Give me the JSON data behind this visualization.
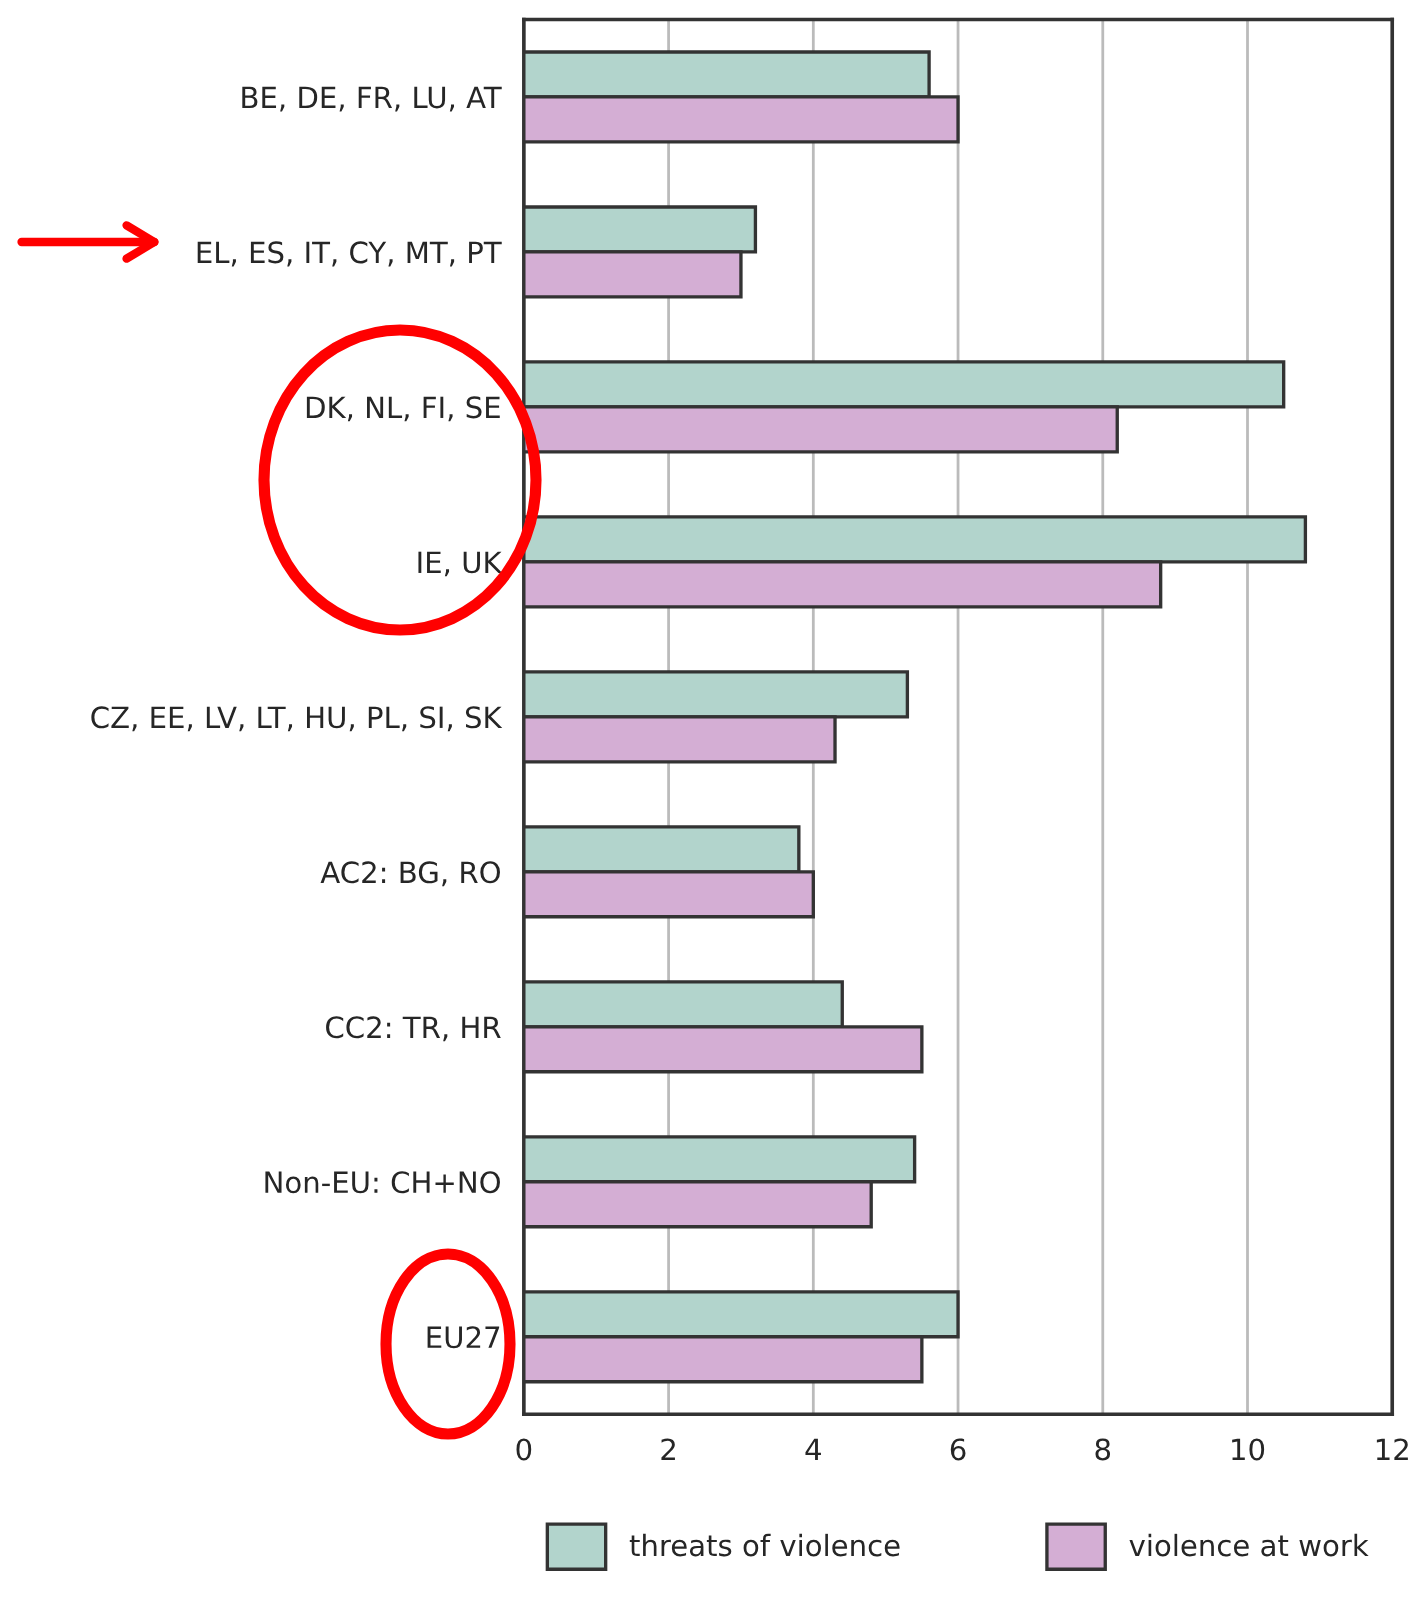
{
  "chart_data": {
    "type": "bar",
    "orientation": "horizontal",
    "categories": [
      "BE, DE, FR, LU, AT",
      "EL, ES, IT, CY, MT, PT",
      "DK, NL, FI, SE",
      "IE, UK",
      "CZ, EE, LV, LT, HU, PL, SI, SK",
      "AC2: BG, RO",
      "CC2: TR, HR",
      "Non-EU: CH+NO",
      "EU27"
    ],
    "series": [
      {
        "name": "threats of violence",
        "color": "#b2d4cc",
        "values": [
          5.6,
          3.2,
          10.5,
          10.8,
          5.3,
          3.8,
          4.4,
          5.4,
          6.0
        ]
      },
      {
        "name": "violence at work",
        "color": "#d4aed4",
        "values": [
          6.0,
          3.0,
          8.2,
          8.8,
          4.3,
          4.0,
          5.5,
          4.8,
          5.5
        ]
      }
    ],
    "xlim": [
      0,
      12
    ],
    "xticks": [
      0,
      2,
      4,
      6,
      8,
      10,
      12
    ],
    "grid": "x",
    "legend": "bottom"
  }
}
